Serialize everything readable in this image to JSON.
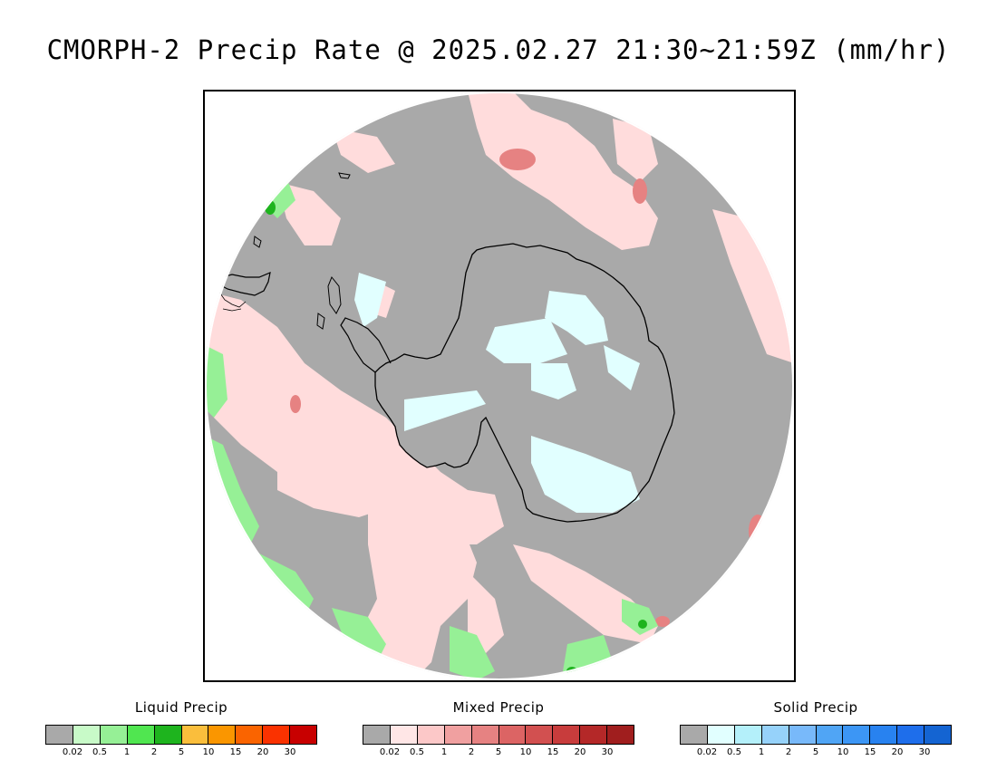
{
  "title": "CMORPH-2 Precip Rate @ 2025.02.27 21:30~21:59Z (mm/hr)",
  "map": {
    "projection": "south-polar-stereographic",
    "ocean_color": "#a9a9a9",
    "icons": [
      "antarctica-outline",
      "south-america-tip-outline"
    ]
  },
  "legends": [
    {
      "id": "liquid",
      "title": "Liquid Precip",
      "colors": [
        "#a9a9a9",
        "#c8fac8",
        "#96f096",
        "#50e650",
        "#1eb41e",
        "#fabe3c",
        "#fa9600",
        "#fa6400",
        "#fa3200",
        "#c80000"
      ],
      "ticks": [
        "0.02",
        "0.5",
        "1",
        "2",
        "5",
        "10",
        "15",
        "20",
        "30"
      ]
    },
    {
      "id": "mixed",
      "title": "Mixed Precip",
      "colors": [
        "#a9a9a9",
        "#ffe6e6",
        "#fcc8c8",
        "#f0a0a0",
        "#e68282",
        "#dc6464",
        "#d25050",
        "#c83c3c",
        "#b42828",
        "#a01e1e"
      ],
      "ticks": [
        "0.02",
        "0.5",
        "1",
        "2",
        "5",
        "10",
        "15",
        "20",
        "30"
      ]
    },
    {
      "id": "solid",
      "title": "Solid Precip",
      "colors": [
        "#a9a9a9",
        "#e1ffff",
        "#b4f0fa",
        "#96d2fa",
        "#78b9fa",
        "#50a5f5",
        "#3c96f5",
        "#2882f0",
        "#1e6eeb",
        "#1464d2"
      ],
      "ticks": [
        "0.02",
        "0.5",
        "1",
        "2",
        "5",
        "10",
        "15",
        "20",
        "30"
      ]
    }
  ]
}
